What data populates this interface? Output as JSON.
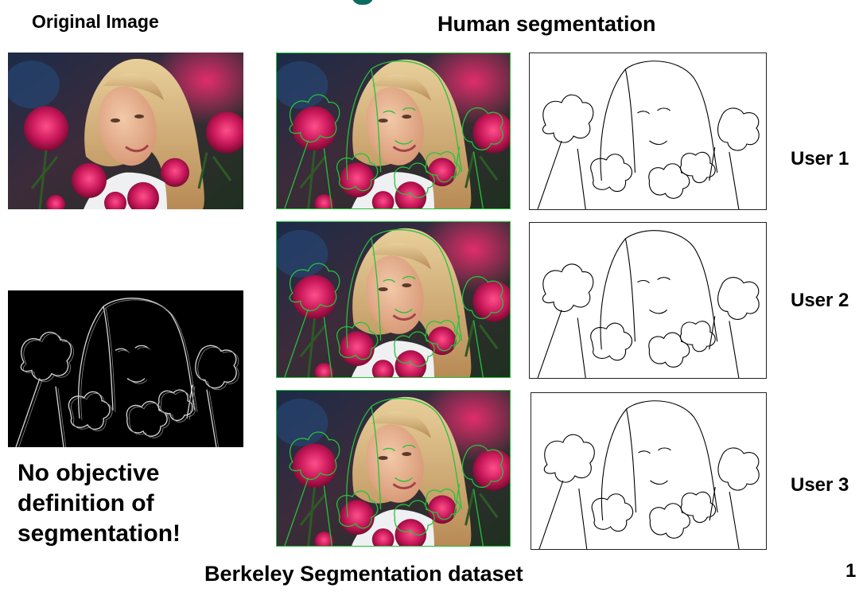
{
  "headings": {
    "original": "Original Image",
    "human": "Human segmentation"
  },
  "users": [
    "User 1",
    "User 2",
    "User 3"
  ],
  "note": [
    "No objective",
    "definition of",
    "segmentation!"
  ],
  "caption": "Berkeley Segmentation dataset",
  "page_number": "1",
  "colors": {
    "outline_green": "#22c33a",
    "accent_teal": "#0b6b61",
    "rose": "#c8185a"
  }
}
